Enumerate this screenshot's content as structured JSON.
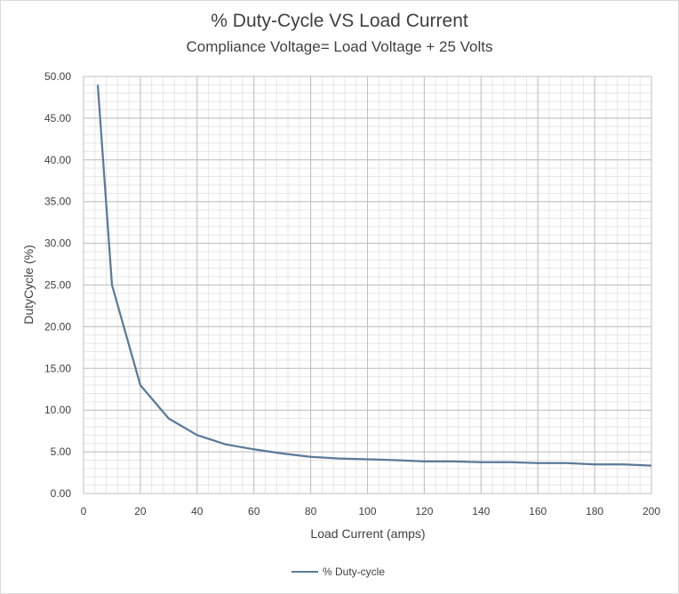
{
  "chart_data": {
    "type": "line",
    "title": "% Duty-Cycle  VS Load Current",
    "subtitle": "Compliance Voltage= Load Voltage + 25 Volts",
    "xlabel": "Load Current (amps)",
    "ylabel": "DutyCycle (%)",
    "xlim": [
      0,
      200
    ],
    "ylim": [
      0,
      50
    ],
    "x_ticks": [
      "0",
      "20",
      "40",
      "60",
      "80",
      "100",
      "120",
      "140",
      "160",
      "180",
      "200"
    ],
    "y_ticks": [
      "0.00",
      "5.00",
      "10.00",
      "15.00",
      "20.00",
      "25.00",
      "30.00",
      "35.00",
      "40.00",
      "45.00",
      "50.00"
    ],
    "grid": true,
    "legend_position": "bottom",
    "series": [
      {
        "name": "% Duty-cycle",
        "color": "#5b7a99",
        "points": [
          {
            "x": 5,
            "y": 49.0
          },
          {
            "x": 10,
            "y": 25.0
          },
          {
            "x": 20,
            "y": 13.0
          },
          {
            "x": 30,
            "y": 9.0
          },
          {
            "x": 40,
            "y": 7.0
          },
          {
            "x": 50,
            "y": 5.9
          },
          {
            "x": 60,
            "y": 5.3
          },
          {
            "x": 70,
            "y": 4.8
          },
          {
            "x": 80,
            "y": 4.4
          },
          {
            "x": 90,
            "y": 4.2
          },
          {
            "x": 100,
            "y": 4.1
          },
          {
            "x": 110,
            "y": 4.0
          },
          {
            "x": 120,
            "y": 3.85
          },
          {
            "x": 130,
            "y": 3.85
          },
          {
            "x": 140,
            "y": 3.75
          },
          {
            "x": 150,
            "y": 3.75
          },
          {
            "x": 160,
            "y": 3.65
          },
          {
            "x": 170,
            "y": 3.65
          },
          {
            "x": 180,
            "y": 3.5
          },
          {
            "x": 190,
            "y": 3.5
          },
          {
            "x": 200,
            "y": 3.35
          }
        ]
      }
    ]
  }
}
